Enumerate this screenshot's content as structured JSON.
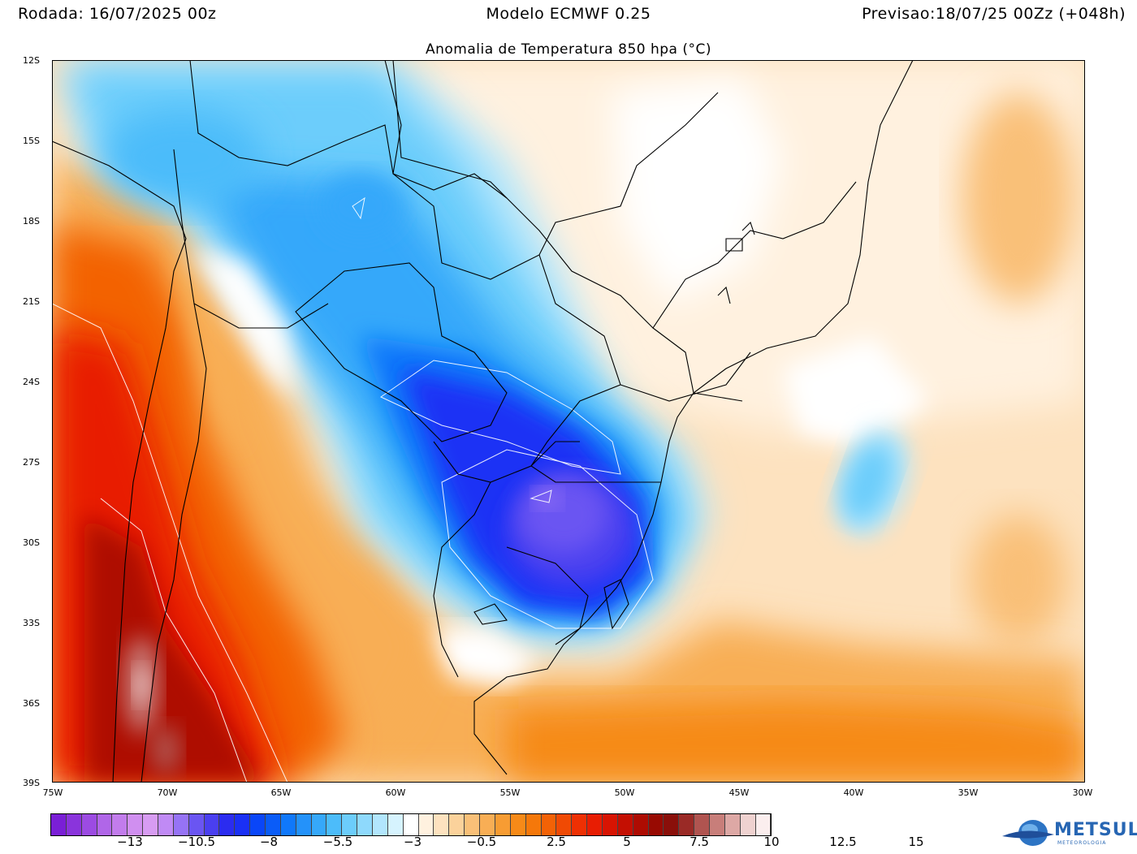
{
  "header": {
    "left": "Rodada: 16/07/2025 00z",
    "center": "Modelo ECMWF 0.25",
    "right": "Previsao:18/07/25 00Zz (+048h)",
    "subtitle": "Anomalia de Temperatura 850 hpa (°C)"
  },
  "axes": {
    "lat_labels": [
      "12S",
      "15S",
      "18S",
      "21S",
      "24S",
      "27S",
      "30S",
      "33S",
      "36S",
      "39S"
    ],
    "lon_labels": [
      "75W",
      "70W",
      "65W",
      "60W",
      "55W",
      "50W",
      "45W",
      "40W",
      "35W",
      "30W"
    ]
  },
  "colorbar": {
    "colors": [
      "#7a1fd6",
      "#8a34dc",
      "#9c4be2",
      "#b066e8",
      "#c27cec",
      "#d08ff0",
      "#d79cf2",
      "#c08af5",
      "#9673f5",
      "#6a55f2",
      "#4a3ff0",
      "#2b2cf0",
      "#1a30f5",
      "#0a46f8",
      "#0a5cf8",
      "#1078fa",
      "#2492fa",
      "#36a8fa",
      "#4cbcfa",
      "#6ccdfb",
      "#8ed9fc",
      "#b2e6fd",
      "#d6f3fe",
      "#ffffff",
      "#fff1df",
      "#fde2bf",
      "#fbd29b",
      "#f9c078",
      "#f8ae55",
      "#f79c33",
      "#f68a18",
      "#f5780a",
      "#f36206",
      "#f04a04",
      "#ee3003",
      "#e81d02",
      "#d81402",
      "#c40f02",
      "#ae0c02",
      "#980a02",
      "#8a0f0a",
      "#9a2a26",
      "#b05450",
      "#c87e7a",
      "#dda8a5",
      "#efd2d0",
      "#fbeeee"
    ],
    "labels": [
      "−13",
      "−10.5",
      "−8",
      "−5.5",
      "−3",
      "−0.5",
      "2.5",
      "5",
      "7.5",
      "10",
      "12.5",
      "15"
    ]
  },
  "logo": {
    "name": "METSUL",
    "sub": "METEOROLOGIA",
    "icon": "globe-swirl-icon"
  }
}
